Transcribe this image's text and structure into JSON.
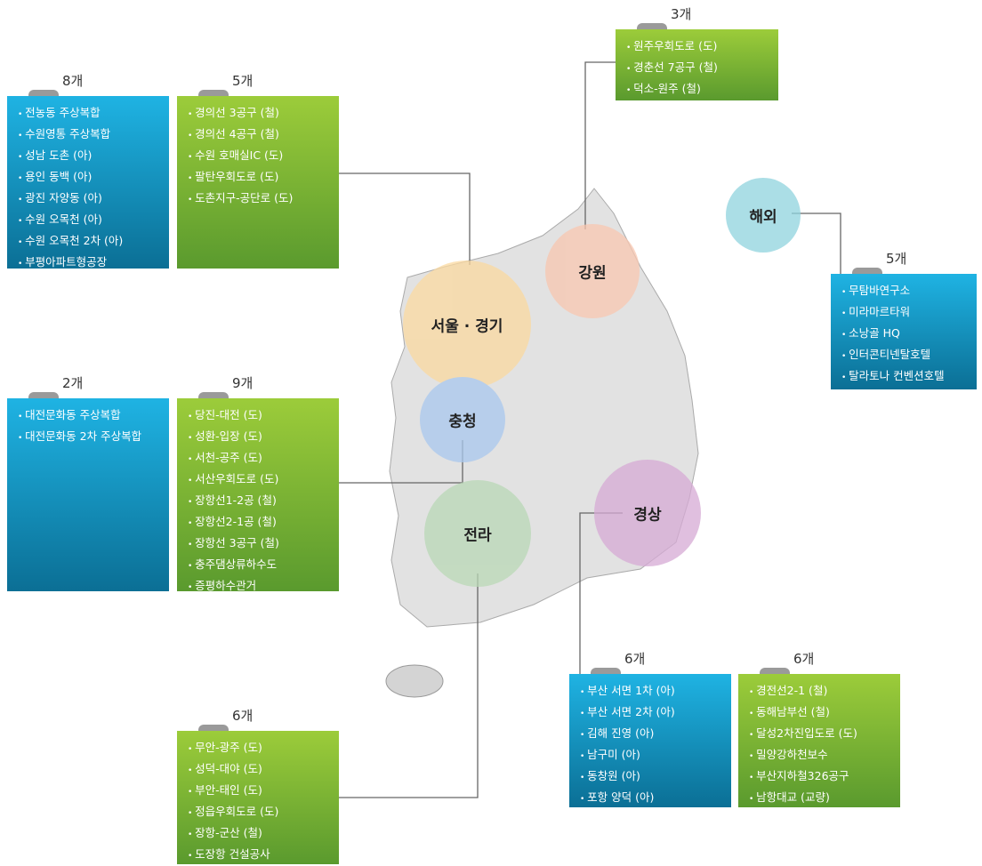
{
  "regions": [
    {
      "label": "서울 · 경기"
    },
    {
      "label": "강원"
    },
    {
      "label": "충청"
    },
    {
      "label": "전라"
    },
    {
      "label": "경상"
    },
    {
      "label": "해외"
    }
  ],
  "boxes": [
    {
      "count": "8개",
      "items": [
        "전농동 주상복합",
        "수원영통 주상복합",
        "성남 도촌 (아)",
        "용인 동백 (아)",
        "광진 자양동 (아)",
        "수원 오목천 (아)",
        "수원 오목천 2차 (아)",
        "부평아파트형공장"
      ]
    },
    {
      "count": "5개",
      "items": [
        "경의선 3공구 (철)",
        "경의선 4공구 (철)",
        "수원 호매실IC (도)",
        "팔탄우회도로 (도)",
        "도촌지구-공단로 (도)"
      ]
    },
    {
      "count": "3개",
      "items": [
        "원주우회도로 (도)",
        "경춘선 7공구 (철)",
        "덕소-원주 (철)"
      ]
    },
    {
      "count": "5개",
      "items": [
        "무탐바연구소",
        "미라마르타워",
        "소낭골 HQ",
        "인터콘티넨탈호텔",
        "탈라토나 컨벤션호텔"
      ]
    },
    {
      "count": "2개",
      "items": [
        "대전문화동 주상복합",
        "대전문화동 2차 주상복합"
      ]
    },
    {
      "count": "9개",
      "items": [
        "당진-대전 (도)",
        "성환-입장 (도)",
        "서천-공주 (도)",
        "서산우회도로 (도)",
        "장항선1-2공 (철)",
        "장항선2-1공 (철)",
        "장항선 3공구 (철)",
        "충주댐상류하수도",
        "증평하수관거"
      ]
    },
    {
      "count": "6개",
      "items": [
        "부산 서면 1차 (아)",
        "부산 서면 2차 (아)",
        "김해 진영 (아)",
        "남구미 (아)",
        "동창원 (아)",
        "포항 양덕 (아)"
      ]
    },
    {
      "count": "6개",
      "items": [
        "경전선2-1 (철)",
        "동해남부선 (철)",
        "달성2차진입도로 (도)",
        "밀양강하천보수",
        "부산지하철326공구",
        "남항대교 (교량)"
      ]
    },
    {
      "count": "6개",
      "items": [
        "무안-광주 (도)",
        "성덕-대야 (도)",
        "부안-태인 (도)",
        "정읍우회도로 (도)",
        "장항-군산 (철)",
        "도장항 건설공사"
      ]
    }
  ]
}
